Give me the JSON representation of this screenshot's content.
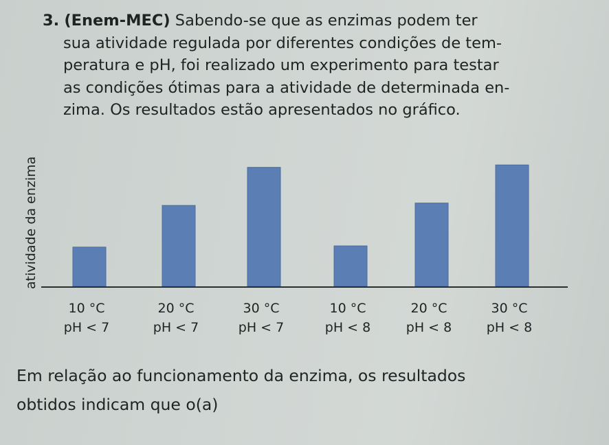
{
  "question": {
    "number": "3.",
    "source": "(Enem-MEC)",
    "text_line1": "Sabendo-se que as enzimas podem ter",
    "text_line2": "sua atividade regulada por diferentes condições de tem-",
    "text_line3": "peratura e pH, foi realizado um experimento para testar",
    "text_line4": "as condições ótimas para a atividade de determinada en-",
    "text_line5": "zima. Os resultados estão apresentados no gráfico."
  },
  "chart_data": {
    "type": "bar",
    "ylabel": "atividade da enzima",
    "xlabel": "",
    "categories": [
      {
        "temp": "10 °C",
        "ph": "pH < 7"
      },
      {
        "temp": "20 °C",
        "ph": "pH < 7"
      },
      {
        "temp": "30 °C",
        "ph": "pH < 7"
      },
      {
        "temp": "10 °C",
        "ph": "pH < 8"
      },
      {
        "temp": "20 °C",
        "ph": "pH < 8"
      },
      {
        "temp": "30 °C",
        "ph": "pH < 8"
      }
    ],
    "values": [
      0.33,
      0.68,
      1.0,
      0.34,
      0.7,
      1.02
    ],
    "ylim": [
      0,
      1.05
    ],
    "bar_color": "#5b7fb4",
    "axis_color": "#2a2f2e"
  },
  "footer": {
    "line1": "Em relação ao funcionamento da enzima, os resultados",
    "line2": "obtidos indicam que o(a)"
  }
}
